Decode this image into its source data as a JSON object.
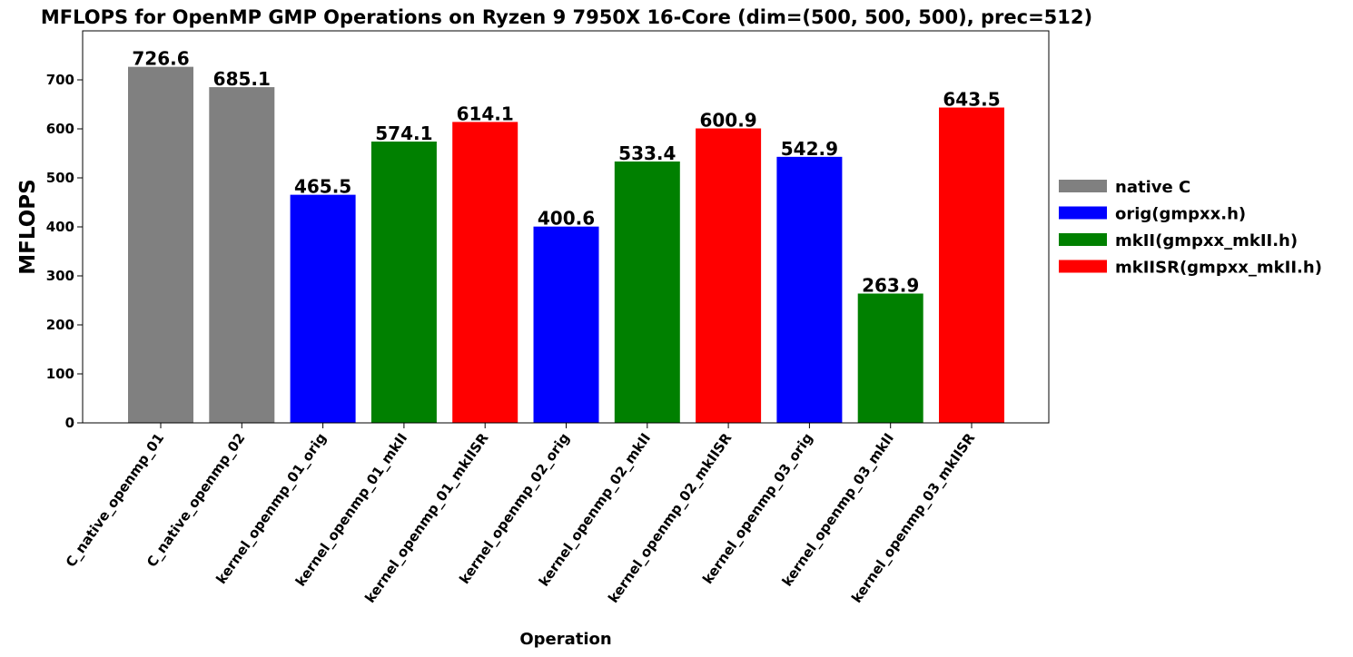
{
  "chart_data": {
    "type": "bar",
    "title": "MFLOPS for OpenMP GMP Operations on Ryzen 9 7950X 16-Core (dim=(500, 500, 500), prec=512)",
    "xlabel": "Operation",
    "ylabel": "MFLOPS",
    "ylim": [
      0,
      800
    ],
    "yticks": [
      0,
      100,
      200,
      300,
      400,
      500,
      600,
      700
    ],
    "grid": false,
    "legend_position": "right",
    "categories": [
      "C_native_openmp_01",
      "C_native_openmp_02",
      "kernel_openmp_01_orig",
      "kernel_openmp_01_mkII",
      "kernel_openmp_01_mkIISR",
      "kernel_openmp_02_orig",
      "kernel_openmp_02_mkII",
      "kernel_openmp_02_mkIISR",
      "kernel_openmp_03_orig",
      "kernel_openmp_03_mkII",
      "kernel_openmp_03_mkIISR"
    ],
    "values": [
      726.6,
      685.1,
      465.5,
      574.1,
      614.1,
      400.6,
      533.4,
      600.9,
      542.9,
      263.9,
      643.5
    ],
    "value_labels": [
      "726.6",
      "685.1",
      "465.5",
      "574.1",
      "614.1",
      "400.6",
      "533.4",
      "600.9",
      "542.9",
      "263.9",
      "643.5"
    ],
    "bar_group": [
      0,
      0,
      1,
      2,
      3,
      1,
      2,
      3,
      1,
      2,
      3
    ],
    "legend": [
      {
        "name": "native C",
        "color": "#808080"
      },
      {
        "name": "orig(gmpxx.h)",
        "color": "#0000ff"
      },
      {
        "name": "mkII(gmpxx_mkII.h)",
        "color": "#008000"
      },
      {
        "name": "mkIISR(gmpxx_mkII.h)",
        "color": "#ff0000"
      }
    ]
  }
}
